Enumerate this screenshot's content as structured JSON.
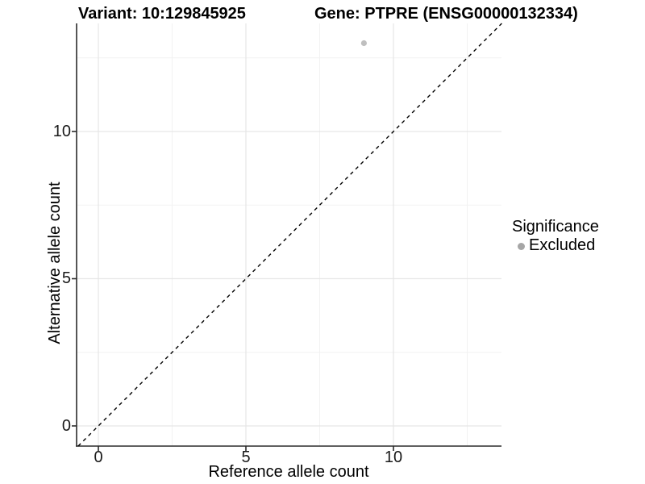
{
  "chart_data": {
    "type": "scatter",
    "title_left": "Variant: 10:129845925",
    "title_right": "Gene: PTPRE (ENSG00000132334)",
    "xlabel": "Reference allele count",
    "ylabel": "Alternative allele count",
    "x_ticks": [
      "0",
      "5",
      "10"
    ],
    "y_ticks": [
      "0",
      "5",
      "10"
    ],
    "x_minor_ticks": [
      2.5,
      7.5,
      12.5
    ],
    "y_minor_ticks": [
      2.5,
      7.5,
      12.5
    ],
    "xlim": [
      -0.74,
      13.67
    ],
    "ylim": [
      -0.68,
      13.67
    ],
    "grid": "major and minor, light gray on white panel",
    "series": [
      {
        "name": "Excluded",
        "marker": "circle",
        "color": "#bfbfbf",
        "points": [
          {
            "x": 9,
            "y": 13
          }
        ]
      }
    ],
    "reference_line": {
      "type": "identity y = x",
      "style": "dashed",
      "color": "#000000"
    },
    "legend": {
      "position": "right",
      "title": "Significance",
      "entries": [
        {
          "label": "Excluded",
          "color": "#a6a6a6",
          "marker": "circle"
        }
      ]
    },
    "colors": {
      "grid_major": "#e6e6e6",
      "grid_minor": "#f2f2f2",
      "axis_line": "#2b2b2b",
      "point": "#bfbfbf"
    }
  }
}
